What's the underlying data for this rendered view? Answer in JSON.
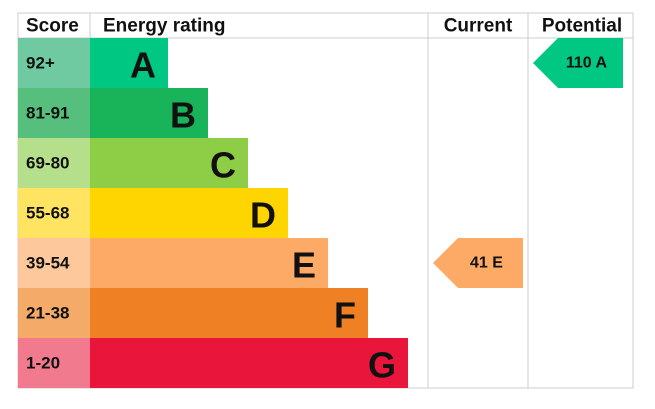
{
  "header": {
    "score": "Score",
    "rating": "Energy rating",
    "current": "Current",
    "potential": "Potential"
  },
  "bands": [
    {
      "score": "92+",
      "letter": "A",
      "color": "#00c781",
      "score_color": "#6fcaa1"
    },
    {
      "score": "81-91",
      "letter": "B",
      "color": "#19b459",
      "score_color": "#57bf7d"
    },
    {
      "score": "69-80",
      "letter": "C",
      "color": "#8dce46",
      "score_color": "#b6df8c"
    },
    {
      "score": "55-68",
      "letter": "D",
      "color": "#ffd500",
      "score_color": "#ffe461"
    },
    {
      "score": "39-54",
      "letter": "E",
      "color": "#fcaa65",
      "score_color": "#fdc99c"
    },
    {
      "score": "21-38",
      "letter": "F",
      "color": "#ef8023",
      "score_color": "#f4aa68"
    },
    {
      "score": "1-20",
      "letter": "G",
      "color": "#e9153b",
      "score_color": "#f27a8e"
    }
  ],
  "current": {
    "label": "41 E",
    "color": "#fcaa65"
  },
  "potential": {
    "label": "110 A",
    "color": "#00c781"
  }
}
